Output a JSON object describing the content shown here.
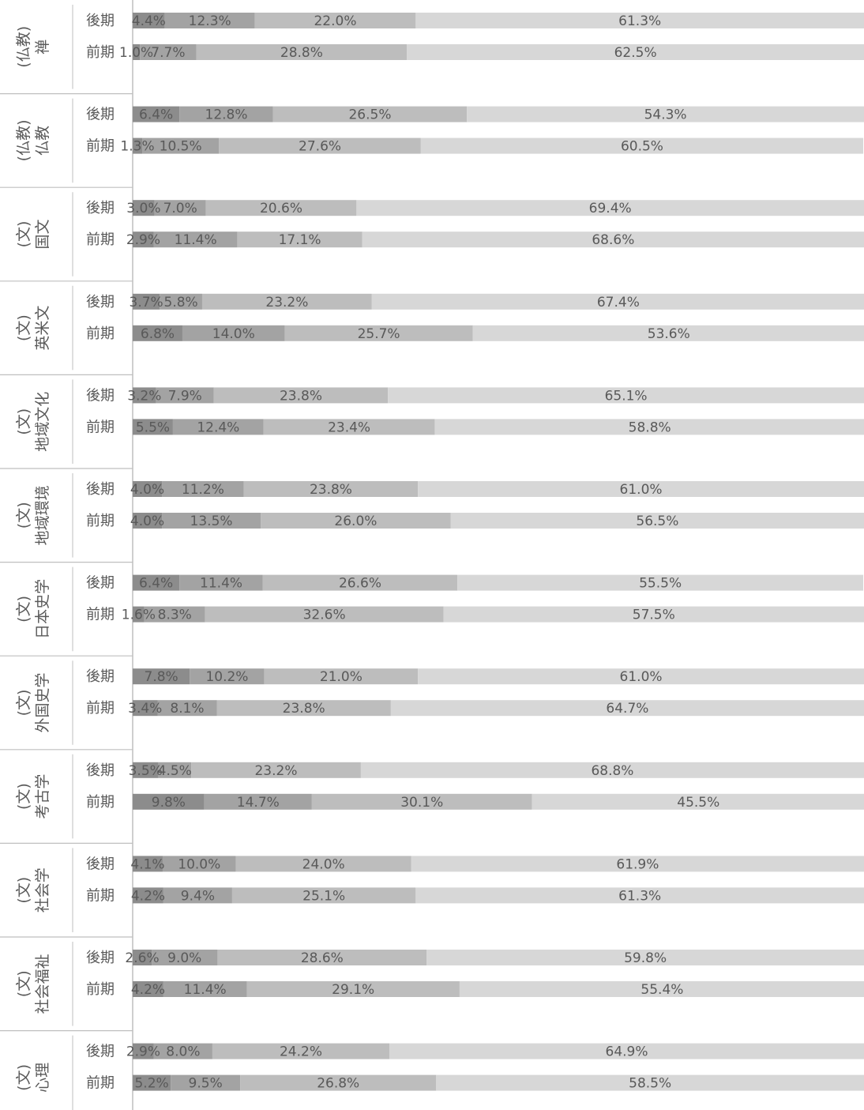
{
  "chart_data": {
    "type": "bar",
    "orientation": "horizontal",
    "stacked": true,
    "normalized_percent": true,
    "grid": false,
    "legend": "none",
    "xlim": [
      0,
      100
    ],
    "categories": [
      {
        "group": [
          "(仏教)",
          "禅"
        ],
        "rows": [
          {
            "label": "後期",
            "values": [
              4.4,
              12.3,
              22.0,
              61.3
            ]
          },
          {
            "label": "前期",
            "values": [
              1.0,
              7.7,
              28.8,
              62.5
            ]
          }
        ]
      },
      {
        "group": [
          "(仏教)",
          "仏教"
        ],
        "rows": [
          {
            "label": "後期",
            "values": [
              6.4,
              12.8,
              26.5,
              54.3
            ]
          },
          {
            "label": "前期",
            "values": [
              1.3,
              10.5,
              27.6,
              60.5
            ]
          }
        ]
      },
      {
        "group": [
          "(文)",
          "国文"
        ],
        "rows": [
          {
            "label": "後期",
            "values": [
              3.0,
              7.0,
              20.6,
              69.4
            ]
          },
          {
            "label": "前期",
            "values": [
              2.9,
              11.4,
              17.1,
              68.6
            ]
          }
        ]
      },
      {
        "group": [
          "(文)",
          "英米文"
        ],
        "rows": [
          {
            "label": "後期",
            "values": [
              3.7,
              5.8,
              23.2,
              67.4
            ]
          },
          {
            "label": "前期",
            "values": [
              6.8,
              14.0,
              25.7,
              53.6
            ]
          }
        ]
      },
      {
        "group": [
          "(文)",
          "地域文化"
        ],
        "rows": [
          {
            "label": "後期",
            "values": [
              3.2,
              7.9,
              23.8,
              65.1
            ]
          },
          {
            "label": "前期",
            "values": [
              5.5,
              12.4,
              23.4,
              58.8
            ]
          }
        ]
      },
      {
        "group": [
          "(文)",
          "地域環境"
        ],
        "rows": [
          {
            "label": "後期",
            "values": [
              4.0,
              11.2,
              23.8,
              61.0
            ]
          },
          {
            "label": "前期",
            "values": [
              4.0,
              13.5,
              26.0,
              56.5
            ]
          }
        ]
      },
      {
        "group": [
          "(文)",
          "日本史学"
        ],
        "rows": [
          {
            "label": "後期",
            "values": [
              6.4,
              11.4,
              26.6,
              55.5
            ]
          },
          {
            "label": "前期",
            "values": [
              1.6,
              8.3,
              32.6,
              57.5
            ]
          }
        ]
      },
      {
        "group": [
          "(文)",
          "外国史学"
        ],
        "rows": [
          {
            "label": "後期",
            "values": [
              7.8,
              10.2,
              21.0,
              61.0
            ]
          },
          {
            "label": "前期",
            "values": [
              3.4,
              8.1,
              23.8,
              64.7
            ]
          }
        ]
      },
      {
        "group": [
          "(文)",
          "考古学"
        ],
        "rows": [
          {
            "label": "後期",
            "values": [
              3.5,
              4.5,
              23.2,
              68.8
            ]
          },
          {
            "label": "前期",
            "values": [
              9.8,
              14.7,
              30.1,
              45.5
            ]
          }
        ]
      },
      {
        "group": [
          "(文)",
          "社会学"
        ],
        "rows": [
          {
            "label": "後期",
            "values": [
              4.1,
              10.0,
              24.0,
              61.9
            ]
          },
          {
            "label": "前期",
            "values": [
              4.2,
              9.4,
              25.1,
              61.3
            ]
          }
        ]
      },
      {
        "group": [
          "(文)",
          "社会福祉"
        ],
        "rows": [
          {
            "label": "後期",
            "values": [
              2.6,
              9.0,
              28.6,
              59.8
            ]
          },
          {
            "label": "前期",
            "values": [
              4.2,
              11.4,
              29.1,
              55.4
            ]
          }
        ]
      },
      {
        "group": [
          "(文)",
          "心理"
        ],
        "rows": [
          {
            "label": "後期",
            "values": [
              2.9,
              8.0,
              24.2,
              64.9
            ]
          },
          {
            "label": "前期",
            "values": [
              5.2,
              9.5,
              26.8,
              58.5
            ]
          }
        ]
      }
    ],
    "segment_colors": [
      "#8c8c8c",
      "#a3a3a3",
      "#bdbdbd",
      "#d7d7d7"
    ],
    "text_color": "#595959",
    "axis_color": "#bfbfbf"
  }
}
